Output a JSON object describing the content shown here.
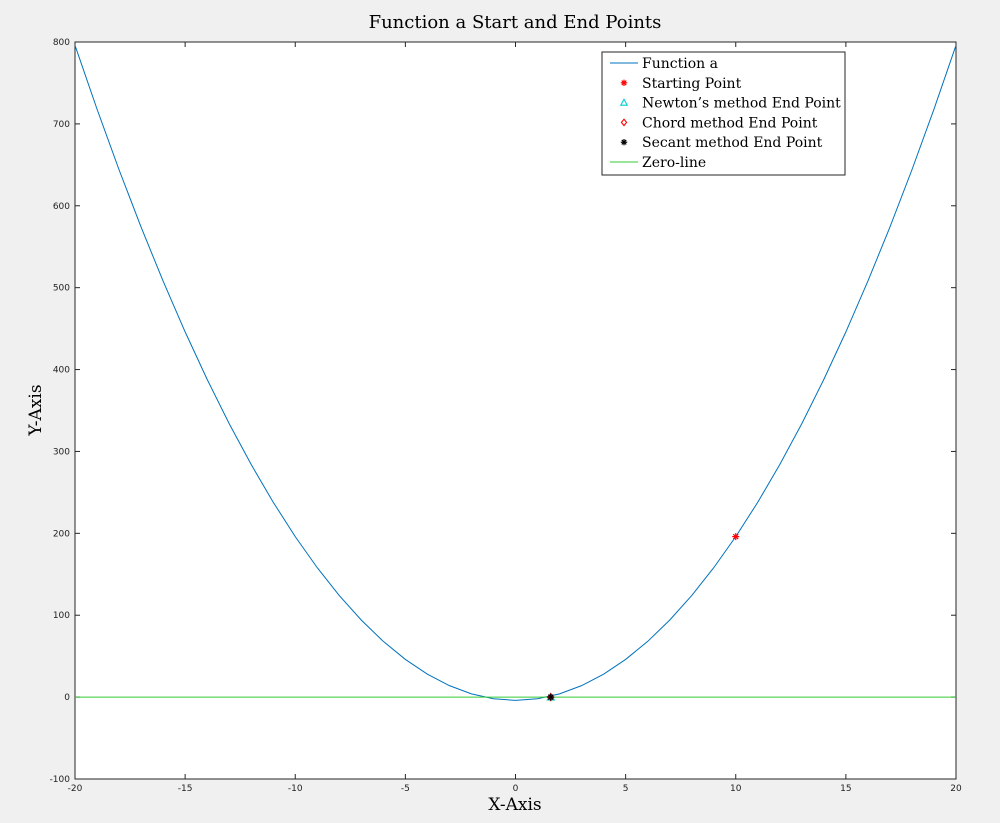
{
  "chart_data": {
    "type": "line",
    "title": "Function a Start and End Points",
    "xlabel": "X-Axis",
    "ylabel": "Y-Axis",
    "xlim": [
      -20,
      20
    ],
    "ylim": [
      -100,
      800
    ],
    "x_ticks": [
      -20,
      -15,
      -10,
      -5,
      0,
      5,
      10,
      15,
      20
    ],
    "y_ticks": [
      -100,
      0,
      100,
      200,
      300,
      400,
      500,
      600,
      700,
      800
    ],
    "grid": false,
    "legend_position": "top-right",
    "series": [
      {
        "name": "Function a",
        "kind": "line",
        "color": "#0072bd",
        "x": [
          -20,
          -19,
          -18,
          -17,
          -16,
          -15,
          -14,
          -13,
          -12,
          -11,
          -10,
          -9,
          -8,
          -7,
          -6,
          -5,
          -4,
          -3,
          -2,
          -1,
          0,
          1,
          2,
          3,
          4,
          5,
          6,
          7,
          8,
          9,
          10,
          11,
          12,
          13,
          14,
          15,
          16,
          17,
          18,
          19,
          20
        ],
        "y": [
          796,
          718,
          644,
          574,
          508,
          446,
          388,
          334,
          284,
          238,
          196,
          158,
          124,
          94,
          68,
          46,
          28,
          14,
          4,
          -2,
          -4,
          -2,
          4,
          14,
          28,
          46,
          68,
          94,
          124,
          158,
          196,
          238,
          284,
          334,
          388,
          446,
          508,
          574,
          644,
          718,
          796
        ]
      },
      {
        "name": "Starting Point",
        "kind": "marker",
        "marker": "asterisk",
        "color": "#ff0000",
        "x": [
          10
        ],
        "y": [
          196
        ]
      },
      {
        "name": "Newton’s method End Point",
        "kind": "marker",
        "marker": "triangle",
        "color": "#00cccc",
        "x": [
          1.6
        ],
        "y": [
          0
        ]
      },
      {
        "name": "Chord method End Point",
        "kind": "marker",
        "marker": "diamond",
        "color": "#ff0000",
        "x": [
          1.6
        ],
        "y": [
          0
        ]
      },
      {
        "name": "Secant method End Point",
        "kind": "marker",
        "marker": "asterisk",
        "color": "#000000",
        "x": [
          1.6
        ],
        "y": [
          0
        ]
      },
      {
        "name": "Zero-line",
        "kind": "line",
        "color": "#33cc33",
        "x": [
          -20,
          20
        ],
        "y": [
          0,
          0
        ]
      }
    ]
  }
}
